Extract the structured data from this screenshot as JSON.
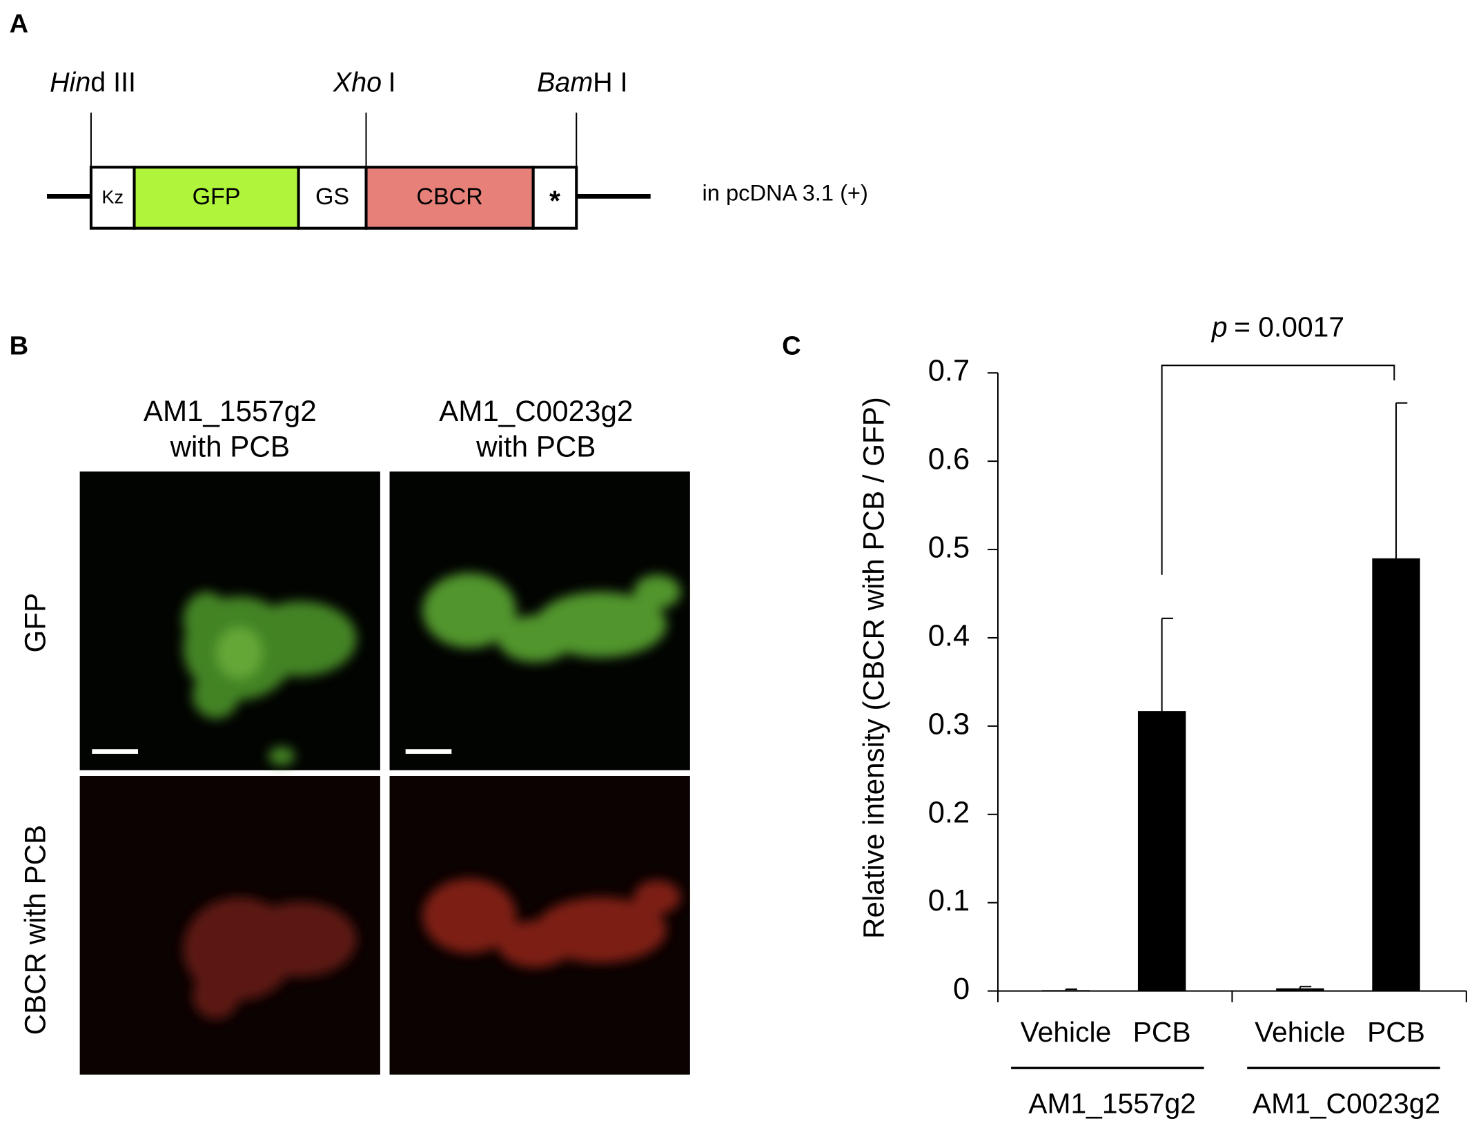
{
  "panel_a": {
    "label": "A",
    "sites": [
      {
        "italic": "Hin",
        "text": "d III"
      },
      {
        "italic": "Xho",
        "text": "I"
      },
      {
        "italic": "Bam",
        "text": "H I"
      }
    ],
    "segments": [
      "Kz",
      "GFP",
      "GS",
      "CBCR",
      "*"
    ],
    "vector": "in pcDNA 3.1 (+)"
  },
  "panel_b": {
    "label": "B",
    "columns": [
      [
        "AM1_1557g2",
        "with PCB"
      ],
      [
        "AM1_C0023g2",
        "with PCB"
      ]
    ],
    "rows": [
      "GFP",
      "CBCR with PCB"
    ]
  },
  "chart_data": {
    "type": "bar",
    "panel_label": "C",
    "y_label": "Relative intensity (CBCR with PCB / GFP)",
    "categories": [
      "Vehicle",
      "PCB",
      "Vehicle",
      "PCB"
    ],
    "groups": [
      "AM1_1557g2",
      "AM1_C0023g2"
    ],
    "values": [
      0.001,
      0.317,
      0.003,
      0.49
    ],
    "errors": [
      0.001,
      0.105,
      0.002,
      0.176
    ],
    "color": "#000000",
    "ylim": [
      0,
      0.7
    ],
    "yticks": [
      0,
      0.1,
      0.2,
      0.3,
      0.4,
      0.5,
      0.6,
      0.7
    ],
    "annotation": {
      "italic": "p",
      "text": "= 0.0017"
    }
  }
}
